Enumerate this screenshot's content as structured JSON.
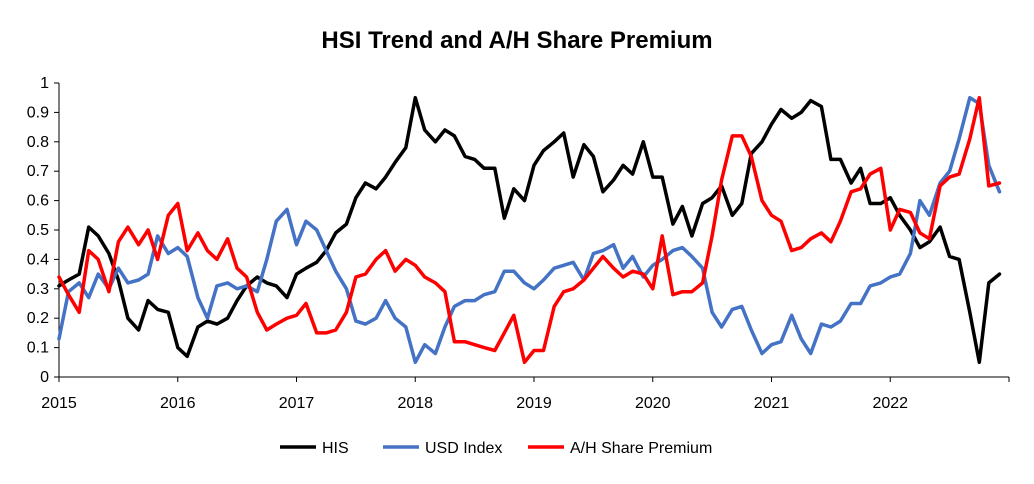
{
  "chart_data": {
    "type": "line",
    "title": "HSI Trend and A/H Share Premium",
    "xlabel": "",
    "ylabel": "",
    "x_range": [
      2015,
      2023
    ],
    "ylim": [
      0,
      1
    ],
    "y_ticks": [
      0,
      0.1,
      0.2,
      0.3,
      0.4,
      0.5,
      0.6,
      0.7,
      0.8,
      0.9,
      1
    ],
    "y_tick_labels": [
      "0",
      "0.1",
      "0.2",
      "0.3",
      "0.4",
      "0.5",
      "0.6",
      "0.7",
      "0.8",
      "0.9",
      "1"
    ],
    "x_ticks": [
      2015,
      2016,
      2017,
      2018,
      2019,
      2020,
      2021,
      2022
    ],
    "x_tick_labels": [
      "2015",
      "2016",
      "2017",
      "2018",
      "2019",
      "2020",
      "2021",
      "2022"
    ],
    "grid": false,
    "legend_position": "bottom",
    "series": [
      {
        "name": "HIS",
        "color": "#000000",
        "points": [
          [
            2015.0,
            0.31
          ],
          [
            2015.08,
            0.33
          ],
          [
            2015.17,
            0.35
          ],
          [
            2015.25,
            0.51
          ],
          [
            2015.33,
            0.48
          ],
          [
            2015.42,
            0.42
          ],
          [
            2015.5,
            0.33
          ],
          [
            2015.58,
            0.2
          ],
          [
            2015.67,
            0.16
          ],
          [
            2015.75,
            0.26
          ],
          [
            2015.83,
            0.23
          ],
          [
            2015.92,
            0.22
          ],
          [
            2016.0,
            0.1
          ],
          [
            2016.08,
            0.07
          ],
          [
            2016.17,
            0.17
          ],
          [
            2016.25,
            0.19
          ],
          [
            2016.33,
            0.18
          ],
          [
            2016.42,
            0.2
          ],
          [
            2016.5,
            0.26
          ],
          [
            2016.58,
            0.31
          ],
          [
            2016.67,
            0.34
          ],
          [
            2016.75,
            0.32
          ],
          [
            2016.83,
            0.31
          ],
          [
            2016.92,
            0.27
          ],
          [
            2017.0,
            0.35
          ],
          [
            2017.08,
            0.37
          ],
          [
            2017.17,
            0.39
          ],
          [
            2017.25,
            0.43
          ],
          [
            2017.33,
            0.49
          ],
          [
            2017.42,
            0.52
          ],
          [
            2017.5,
            0.61
          ],
          [
            2017.58,
            0.66
          ],
          [
            2017.67,
            0.64
          ],
          [
            2017.75,
            0.68
          ],
          [
            2017.83,
            0.73
          ],
          [
            2017.92,
            0.78
          ],
          [
            2018.0,
            0.95
          ],
          [
            2018.08,
            0.84
          ],
          [
            2018.17,
            0.8
          ],
          [
            2018.25,
            0.84
          ],
          [
            2018.33,
            0.82
          ],
          [
            2018.42,
            0.75
          ],
          [
            2018.5,
            0.74
          ],
          [
            2018.58,
            0.71
          ],
          [
            2018.67,
            0.71
          ],
          [
            2018.75,
            0.54
          ],
          [
            2018.83,
            0.64
          ],
          [
            2018.92,
            0.6
          ],
          [
            2019.0,
            0.72
          ],
          [
            2019.08,
            0.77
          ],
          [
            2019.17,
            0.8
          ],
          [
            2019.25,
            0.83
          ],
          [
            2019.33,
            0.68
          ],
          [
            2019.42,
            0.79
          ],
          [
            2019.5,
            0.75
          ],
          [
            2019.58,
            0.63
          ],
          [
            2019.67,
            0.67
          ],
          [
            2019.75,
            0.72
          ],
          [
            2019.83,
            0.69
          ],
          [
            2019.92,
            0.8
          ],
          [
            2020.0,
            0.68
          ],
          [
            2020.08,
            0.68
          ],
          [
            2020.17,
            0.52
          ],
          [
            2020.25,
            0.58
          ],
          [
            2020.33,
            0.48
          ],
          [
            2020.42,
            0.59
          ],
          [
            2020.5,
            0.61
          ],
          [
            2020.58,
            0.65
          ],
          [
            2020.67,
            0.55
          ],
          [
            2020.75,
            0.59
          ],
          [
            2020.83,
            0.76
          ],
          [
            2020.92,
            0.8
          ],
          [
            2021.0,
            0.86
          ],
          [
            2021.08,
            0.91
          ],
          [
            2021.17,
            0.88
          ],
          [
            2021.25,
            0.9
          ],
          [
            2021.33,
            0.94
          ],
          [
            2021.42,
            0.92
          ],
          [
            2021.5,
            0.74
          ],
          [
            2021.58,
            0.74
          ],
          [
            2021.67,
            0.66
          ],
          [
            2021.75,
            0.71
          ],
          [
            2021.83,
            0.59
          ],
          [
            2021.92,
            0.59
          ],
          [
            2022.0,
            0.61
          ],
          [
            2022.08,
            0.55
          ],
          [
            2022.17,
            0.5
          ],
          [
            2022.25,
            0.44
          ],
          [
            2022.33,
            0.46
          ],
          [
            2022.42,
            0.51
          ],
          [
            2022.5,
            0.41
          ],
          [
            2022.58,
            0.4
          ],
          [
            2022.67,
            0.22
          ],
          [
            2022.75,
            0.05
          ],
          [
            2022.83,
            0.32
          ],
          [
            2022.92,
            0.35
          ]
        ]
      },
      {
        "name": "USD Index",
        "color": "#4472C4",
        "points": [
          [
            2015.0,
            0.13
          ],
          [
            2015.08,
            0.29
          ],
          [
            2015.17,
            0.32
          ],
          [
            2015.25,
            0.27
          ],
          [
            2015.33,
            0.35
          ],
          [
            2015.42,
            0.3
          ],
          [
            2015.5,
            0.37
          ],
          [
            2015.58,
            0.32
          ],
          [
            2015.67,
            0.33
          ],
          [
            2015.75,
            0.35
          ],
          [
            2015.83,
            0.48
          ],
          [
            2015.92,
            0.42
          ],
          [
            2016.0,
            0.44
          ],
          [
            2016.08,
            0.41
          ],
          [
            2016.17,
            0.27
          ],
          [
            2016.25,
            0.2
          ],
          [
            2016.33,
            0.31
          ],
          [
            2016.42,
            0.32
          ],
          [
            2016.5,
            0.3
          ],
          [
            2016.58,
            0.31
          ],
          [
            2016.67,
            0.29
          ],
          [
            2016.75,
            0.4
          ],
          [
            2016.83,
            0.53
          ],
          [
            2016.92,
            0.57
          ],
          [
            2017.0,
            0.45
          ],
          [
            2017.08,
            0.53
          ],
          [
            2017.17,
            0.5
          ],
          [
            2017.25,
            0.43
          ],
          [
            2017.33,
            0.36
          ],
          [
            2017.42,
            0.3
          ],
          [
            2017.5,
            0.19
          ],
          [
            2017.58,
            0.18
          ],
          [
            2017.67,
            0.2
          ],
          [
            2017.75,
            0.26
          ],
          [
            2017.83,
            0.2
          ],
          [
            2017.92,
            0.17
          ],
          [
            2018.0,
            0.05
          ],
          [
            2018.08,
            0.11
          ],
          [
            2018.17,
            0.08
          ],
          [
            2018.25,
            0.17
          ],
          [
            2018.33,
            0.24
          ],
          [
            2018.42,
            0.26
          ],
          [
            2018.5,
            0.26
          ],
          [
            2018.58,
            0.28
          ],
          [
            2018.67,
            0.29
          ],
          [
            2018.75,
            0.36
          ],
          [
            2018.83,
            0.36
          ],
          [
            2018.92,
            0.32
          ],
          [
            2019.0,
            0.3
          ],
          [
            2019.08,
            0.33
          ],
          [
            2019.17,
            0.37
          ],
          [
            2019.25,
            0.38
          ],
          [
            2019.33,
            0.39
          ],
          [
            2019.42,
            0.33
          ],
          [
            2019.5,
            0.42
          ],
          [
            2019.58,
            0.43
          ],
          [
            2019.67,
            0.45
          ],
          [
            2019.75,
            0.37
          ],
          [
            2019.83,
            0.41
          ],
          [
            2019.92,
            0.34
          ],
          [
            2020.0,
            0.38
          ],
          [
            2020.08,
            0.4
          ],
          [
            2020.17,
            0.43
          ],
          [
            2020.25,
            0.44
          ],
          [
            2020.33,
            0.41
          ],
          [
            2020.42,
            0.37
          ],
          [
            2020.5,
            0.22
          ],
          [
            2020.58,
            0.17
          ],
          [
            2020.67,
            0.23
          ],
          [
            2020.75,
            0.24
          ],
          [
            2020.83,
            0.16
          ],
          [
            2020.92,
            0.08
          ],
          [
            2021.0,
            0.11
          ],
          [
            2021.08,
            0.12
          ],
          [
            2021.17,
            0.21
          ],
          [
            2021.25,
            0.13
          ],
          [
            2021.33,
            0.08
          ],
          [
            2021.42,
            0.18
          ],
          [
            2021.5,
            0.17
          ],
          [
            2021.58,
            0.19
          ],
          [
            2021.67,
            0.25
          ],
          [
            2021.75,
            0.25
          ],
          [
            2021.83,
            0.31
          ],
          [
            2021.92,
            0.32
          ],
          [
            2022.0,
            0.34
          ],
          [
            2022.08,
            0.35
          ],
          [
            2022.17,
            0.42
          ],
          [
            2022.25,
            0.6
          ],
          [
            2022.33,
            0.55
          ],
          [
            2022.42,
            0.66
          ],
          [
            2022.5,
            0.7
          ],
          [
            2022.58,
            0.81
          ],
          [
            2022.67,
            0.95
          ],
          [
            2022.75,
            0.93
          ],
          [
            2022.83,
            0.72
          ],
          [
            2022.92,
            0.63
          ]
        ]
      },
      {
        "name": "A/H Share Premium",
        "color": "#FF0000",
        "points": [
          [
            2015.0,
            0.34
          ],
          [
            2015.08,
            0.28
          ],
          [
            2015.17,
            0.22
          ],
          [
            2015.25,
            0.43
          ],
          [
            2015.33,
            0.4
          ],
          [
            2015.42,
            0.29
          ],
          [
            2015.5,
            0.46
          ],
          [
            2015.58,
            0.51
          ],
          [
            2015.67,
            0.45
          ],
          [
            2015.75,
            0.5
          ],
          [
            2015.83,
            0.4
          ],
          [
            2015.92,
            0.55
          ],
          [
            2016.0,
            0.59
          ],
          [
            2016.08,
            0.43
          ],
          [
            2016.17,
            0.49
          ],
          [
            2016.25,
            0.43
          ],
          [
            2016.33,
            0.4
          ],
          [
            2016.42,
            0.47
          ],
          [
            2016.5,
            0.37
          ],
          [
            2016.58,
            0.34
          ],
          [
            2016.67,
            0.22
          ],
          [
            2016.75,
            0.16
          ],
          [
            2016.83,
            0.18
          ],
          [
            2016.92,
            0.2
          ],
          [
            2017.0,
            0.21
          ],
          [
            2017.08,
            0.25
          ],
          [
            2017.17,
            0.15
          ],
          [
            2017.25,
            0.15
          ],
          [
            2017.33,
            0.16
          ],
          [
            2017.42,
            0.22
          ],
          [
            2017.5,
            0.34
          ],
          [
            2017.58,
            0.35
          ],
          [
            2017.67,
            0.4
          ],
          [
            2017.75,
            0.43
          ],
          [
            2017.83,
            0.36
          ],
          [
            2017.92,
            0.4
          ],
          [
            2018.0,
            0.38
          ],
          [
            2018.08,
            0.34
          ],
          [
            2018.17,
            0.32
          ],
          [
            2018.25,
            0.29
          ],
          [
            2018.33,
            0.12
          ],
          [
            2018.42,
            0.12
          ],
          [
            2018.5,
            0.11
          ],
          [
            2018.58,
            0.1
          ],
          [
            2018.67,
            0.09
          ],
          [
            2018.75,
            0.15
          ],
          [
            2018.83,
            0.21
          ],
          [
            2018.92,
            0.05
          ],
          [
            2019.0,
            0.09
          ],
          [
            2019.08,
            0.09
          ],
          [
            2019.17,
            0.24
          ],
          [
            2019.25,
            0.29
          ],
          [
            2019.33,
            0.3
          ],
          [
            2019.42,
            0.33
          ],
          [
            2019.5,
            0.37
          ],
          [
            2019.58,
            0.41
          ],
          [
            2019.67,
            0.37
          ],
          [
            2019.75,
            0.34
          ],
          [
            2019.83,
            0.36
          ],
          [
            2019.92,
            0.35
          ],
          [
            2020.0,
            0.3
          ],
          [
            2020.08,
            0.48
          ],
          [
            2020.17,
            0.28
          ],
          [
            2020.25,
            0.29
          ],
          [
            2020.33,
            0.29
          ],
          [
            2020.42,
            0.32
          ],
          [
            2020.5,
            0.48
          ],
          [
            2020.58,
            0.67
          ],
          [
            2020.67,
            0.82
          ],
          [
            2020.75,
            0.82
          ],
          [
            2020.83,
            0.75
          ],
          [
            2020.92,
            0.6
          ],
          [
            2021.0,
            0.55
          ],
          [
            2021.08,
            0.53
          ],
          [
            2021.17,
            0.43
          ],
          [
            2021.25,
            0.44
          ],
          [
            2021.33,
            0.47
          ],
          [
            2021.42,
            0.49
          ],
          [
            2021.5,
            0.46
          ],
          [
            2021.58,
            0.53
          ],
          [
            2021.67,
            0.63
          ],
          [
            2021.75,
            0.64
          ],
          [
            2021.83,
            0.69
          ],
          [
            2021.92,
            0.71
          ],
          [
            2022.0,
            0.5
          ],
          [
            2022.08,
            0.57
          ],
          [
            2022.17,
            0.56
          ],
          [
            2022.25,
            0.49
          ],
          [
            2022.33,
            0.47
          ],
          [
            2022.42,
            0.65
          ],
          [
            2022.5,
            0.68
          ],
          [
            2022.58,
            0.69
          ],
          [
            2022.67,
            0.81
          ],
          [
            2022.75,
            0.95
          ],
          [
            2022.83,
            0.65
          ],
          [
            2022.92,
            0.66
          ]
        ]
      }
    ]
  }
}
